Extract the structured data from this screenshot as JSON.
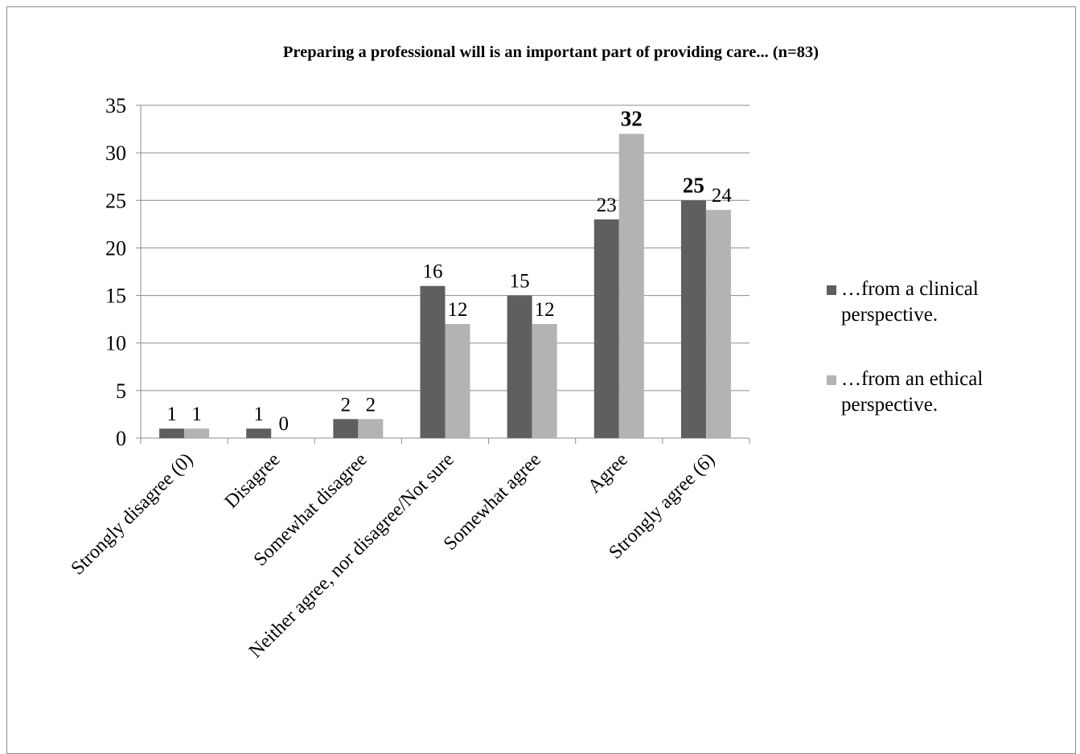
{
  "chart_data": {
    "type": "bar",
    "title": "Preparing a professional will is an important part of providing care... (n=83)",
    "xlabel": "",
    "ylabel": "",
    "ylim": [
      0,
      35
    ],
    "yticks": [
      0,
      5,
      10,
      15,
      20,
      25,
      30,
      35
    ],
    "grid": true,
    "legend_position": "right",
    "categories": [
      "Strongly disagree (0)",
      "Disagree",
      "Somewhat disagree",
      "Neither agree, nor disagree/Not sure",
      "Somewhat agree",
      "Agree",
      "Strongly agree (6)"
    ],
    "series": [
      {
        "name": "…from a clinical perspective.",
        "color": "#5f5f5f",
        "values": [
          1,
          1,
          2,
          16,
          15,
          23,
          25
        ],
        "bold_labels": [
          false,
          false,
          false,
          false,
          false,
          false,
          true
        ]
      },
      {
        "name": "…from an ethical perspective.",
        "color": "#b3b3b3",
        "values": [
          1,
          0,
          2,
          12,
          12,
          32,
          24
        ],
        "bold_labels": [
          false,
          false,
          false,
          false,
          false,
          true,
          false
        ]
      }
    ]
  }
}
